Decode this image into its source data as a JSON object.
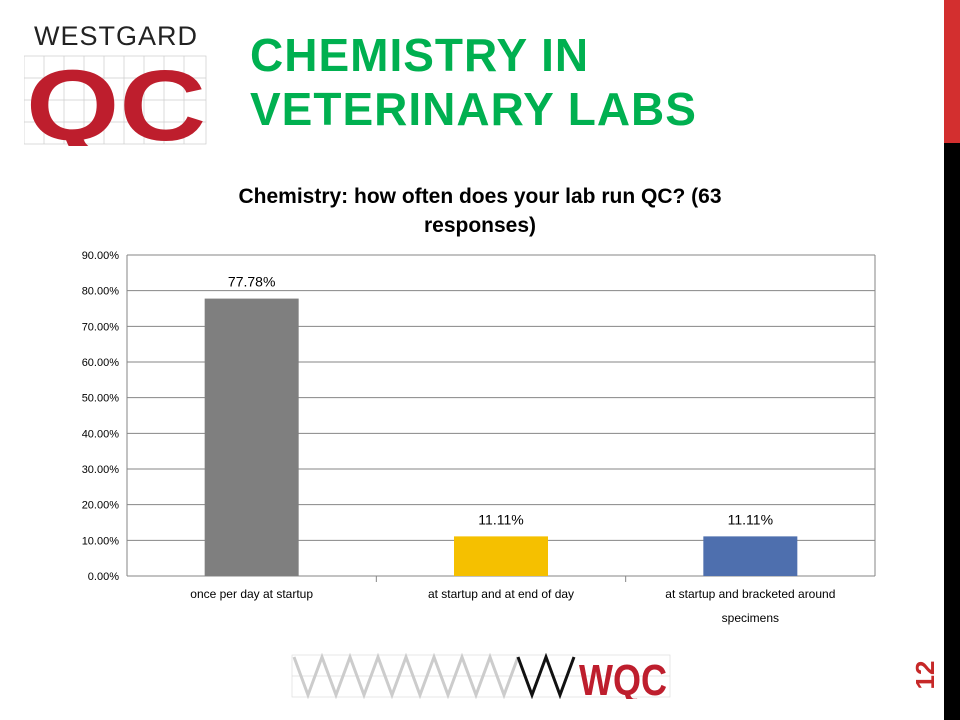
{
  "slide": {
    "title_line1": "CHEMISTRY IN",
    "title_line2": "VETERINARY LABS",
    "page_number": "12",
    "logo_text": "WESTGARD QC",
    "footer_logo_text": "WQC"
  },
  "colors": {
    "title": "#00b050",
    "brand_red": "#be1e2d"
  },
  "chart_data": {
    "type": "bar",
    "title": "Chemistry: how often does your lab run QC? (63 responses)",
    "title_line1": "Chemistry: how often does your lab run QC? (63",
    "title_line2": "responses)",
    "categories": [
      "once per day at startup",
      "at  startup and at  end of day",
      "at  startup and bracketed around specimens"
    ],
    "category_lines": [
      [
        "once per day at startup"
      ],
      [
        "at  startup and at  end of day"
      ],
      [
        "at  startup and bracketed around",
        "specimens"
      ]
    ],
    "values": [
      77.78,
      11.11,
      11.11
    ],
    "data_labels": [
      "77.78%",
      "11.11%",
      "11.11%"
    ],
    "colors": [
      "#7f7f7f",
      "#f5c000",
      "#4e6fae"
    ],
    "ylim": [
      0,
      90
    ],
    "yticks": [
      "0.00%",
      "10.00%",
      "20.00%",
      "30.00%",
      "40.00%",
      "50.00%",
      "60.00%",
      "70.00%",
      "80.00%",
      "90.00%"
    ],
    "grid": true,
    "legend": "none"
  }
}
